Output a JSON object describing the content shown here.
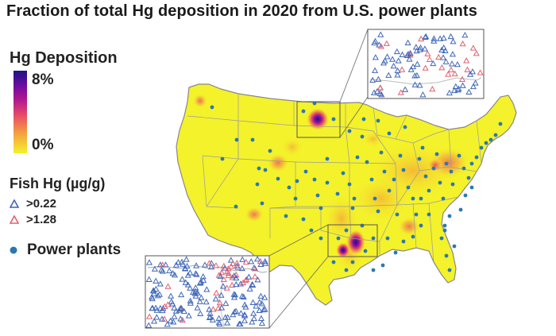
{
  "title": "Fraction of total Hg deposition in 2020 from U.S. power plants",
  "deposition_legend": {
    "heading": "Hg Deposition",
    "max_label": "8%",
    "min_label": "0%",
    "colors": [
      "#1c1584",
      "#6d0ba1",
      "#b4198e",
      "#ea4f63",
      "#f5a13e",
      "#f4f22a"
    ]
  },
  "fish_legend": {
    "heading": "Fish Hg (µg/g)",
    "items": [
      {
        "label": ">0.22",
        "color": "#3f67b8",
        "icon": "triangle-outline-icon"
      },
      {
        "label": ">1.28",
        "color": "#e06070",
        "icon": "triangle-outline-icon"
      }
    ]
  },
  "power_plants_legend": {
    "label": "Power plants",
    "color": "#2a78b3",
    "icon": "dot-icon"
  },
  "colors": {
    "land": "#f4f22a",
    "state_border": "#9b9b9b",
    "plant_marker": "#2a78b3",
    "fish_low": "#3f67b8",
    "fish_high": "#e06070"
  }
}
